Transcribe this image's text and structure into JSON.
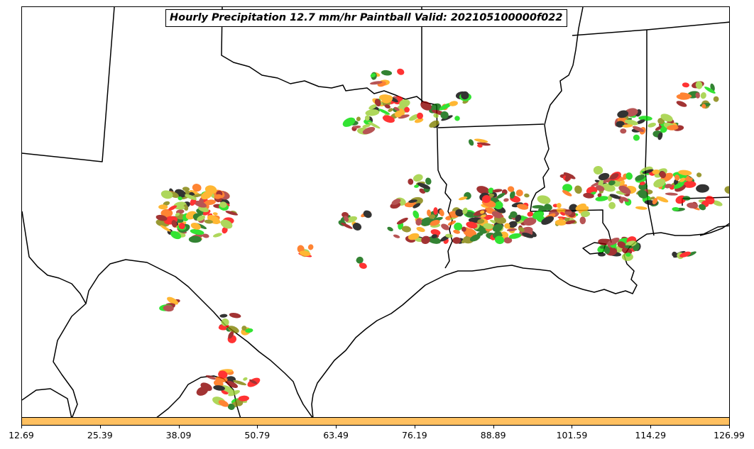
{
  "title": "Hourly Precipitation 12.7 mm/hr Paintball Valid: 202105100000f022",
  "colorbar": {
    "color": "#ffc060",
    "ticks": [
      "12.69",
      "25.39",
      "38.09",
      "50.79",
      "63.49",
      "76.19",
      "88.89",
      "101.59",
      "114.29",
      "126.99"
    ]
  },
  "member_colors": [
    "#ff0000",
    "#ff6600",
    "#ffa500",
    "#8b0000",
    "#a52a2a",
    "#808000",
    "#9acd32",
    "#00dd00",
    "#006400",
    "#000000"
  ]
}
